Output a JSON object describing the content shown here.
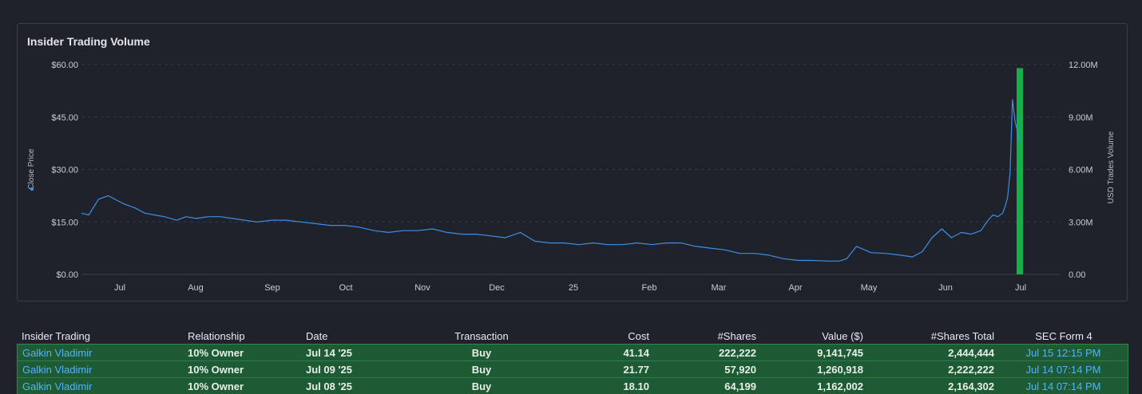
{
  "chart_data": {
    "type": "line",
    "title": "Insider Trading Volume",
    "left_axis": {
      "label": "Close Price",
      "ticks": [
        "$0.00",
        "$15.00",
        "$30.00",
        "$45.00",
        "$60.00"
      ],
      "range": [
        0,
        60
      ]
    },
    "right_axis": {
      "label": "USD Trades Volume",
      "ticks": [
        "0.00",
        "3.00M",
        "6.00M",
        "9.00M",
        "12.00M"
      ],
      "range": [
        0,
        12000000
      ]
    },
    "x_ticks": [
      "Jul",
      "Aug",
      "Sep",
      "Oct",
      "Nov",
      "Dec",
      "25",
      "Feb",
      "Mar",
      "Apr",
      "May",
      "Jun",
      "Jul"
    ],
    "series": [
      {
        "name": "Close Price",
        "color": "#3d8ee6",
        "x": [
          "Jun 24 '24",
          "Jun 27 '24",
          "Jul 01 '24",
          "Jul 05 '24",
          "Jul 09 '24",
          "Jul 12 '24",
          "Jul 16 '24",
          "Jul 20 '24",
          "Jul 24 '24",
          "Jul 28 '24",
          "Aug 02 '24",
          "Aug 06 '24",
          "Aug 10 '24",
          "Aug 15 '24",
          "Aug 20 '24",
          "Aug 25 '24",
          "Aug 30 '24",
          "Sep 04 '24",
          "Sep 10 '24",
          "Sep 16 '24",
          "Sep 22 '24",
          "Sep 28 '24",
          "Oct 04 '24",
          "Oct 10 '24",
          "Oct 16 '24",
          "Oct 22 '24",
          "Oct 28 '24",
          "Nov 03 '24",
          "Nov 09 '24",
          "Nov 15 '24",
          "Nov 21 '24",
          "Nov 27 '24",
          "Dec 03 '24",
          "Dec 09 '24",
          "Dec 15 '24",
          "Dec 21 '24",
          "Dec 27 '24",
          "Jan 02 '25",
          "Jan 08 '25",
          "Jan 14 '25",
          "Jan 20 '25",
          "Jan 26 '25",
          "Feb 01 '25",
          "Feb 07 '25",
          "Feb 13 '25",
          "Feb 19 '25",
          "Feb 25 '25",
          "Mar 03 '25",
          "Mar 09 '25",
          "Mar 15 '25",
          "Mar 21 '25",
          "Mar 27 '25",
          "Apr 02 '25",
          "Apr 08 '25",
          "Apr 14 '25",
          "Apr 20 '25",
          "Apr 26 '25",
          "May 01 '25",
          "May 04 '25",
          "May 08 '25",
          "May 14 '25",
          "May 20 '25",
          "May 26 '25",
          "May 31 '25",
          "Jun 04 '25",
          "Jun 08 '25",
          "Jun 12 '25",
          "Jun 16 '25",
          "Jun 20 '25",
          "Jun 24 '25",
          "Jun 28 '25",
          "Jul 01 '25",
          "Jul 03 '25",
          "Jul 05 '25",
          "Jul 07 '25",
          "Jul 08 '25",
          "Jul 09 '25",
          "Jul 10 '25",
          "Jul 11 '25",
          "Jul 12 '25",
          "Jul 14 '25"
        ],
        "values": [
          17.5,
          17.0,
          21.5,
          22.5,
          21.0,
          20.0,
          19.0,
          17.5,
          17.0,
          16.5,
          15.5,
          16.5,
          16.0,
          16.5,
          16.5,
          16.0,
          15.5,
          15.0,
          15.5,
          15.5,
          15.0,
          14.5,
          14.0,
          14.0,
          13.5,
          12.5,
          12.0,
          12.5,
          12.5,
          13.0,
          12.0,
          11.5,
          11.5,
          11.0,
          10.5,
          12.0,
          9.5,
          9.0,
          9.0,
          8.5,
          9.0,
          8.5,
          8.5,
          9.0,
          8.5,
          9.0,
          9.0,
          8.0,
          7.5,
          7.0,
          6.0,
          6.0,
          5.5,
          4.5,
          4.0,
          4.0,
          3.8,
          3.8,
          4.5,
          8.0,
          6.2,
          6.0,
          5.5,
          5.0,
          6.5,
          10.5,
          13.0,
          10.5,
          12.0,
          11.5,
          12.5,
          15.5,
          17.0,
          16.5,
          17.5,
          19.5,
          22.0,
          29.0,
          50.0,
          44.0,
          38.0
        ]
      },
      {
        "name": "USD Trades Volume",
        "type": "bar",
        "color": "#15b04a",
        "x": [
          "Jul 14 '25"
        ],
        "values": [
          11800000
        ]
      }
    ]
  },
  "table": {
    "headers": [
      "Insider Trading",
      "Relationship",
      "Date",
      "Transaction",
      "Cost",
      "#Shares",
      "Value ($)",
      "#Shares Total",
      "SEC Form 4"
    ],
    "rows": [
      {
        "insider": "Galkin Vladimir",
        "relationship": "10% Owner",
        "date": "Jul 14 '25",
        "transaction": "Buy",
        "cost": "41.14",
        "shares": "222,222",
        "value": "9,141,745",
        "shares_total": "2,444,444",
        "sec_form": "Jul 15 12:15 PM"
      },
      {
        "insider": "Galkin Vladimir",
        "relationship": "10% Owner",
        "date": "Jul 09 '25",
        "transaction": "Buy",
        "cost": "21.77",
        "shares": "57,920",
        "value": "1,260,918",
        "shares_total": "2,222,222",
        "sec_form": "Jul 14 07:14 PM"
      },
      {
        "insider": "Galkin Vladimir",
        "relationship": "10% Owner",
        "date": "Jul 08 '25",
        "transaction": "Buy",
        "cost": "18.10",
        "shares": "64,199",
        "value": "1,162,002",
        "shares_total": "2,164,302",
        "sec_form": "Jul 14 07:14 PM"
      }
    ]
  }
}
